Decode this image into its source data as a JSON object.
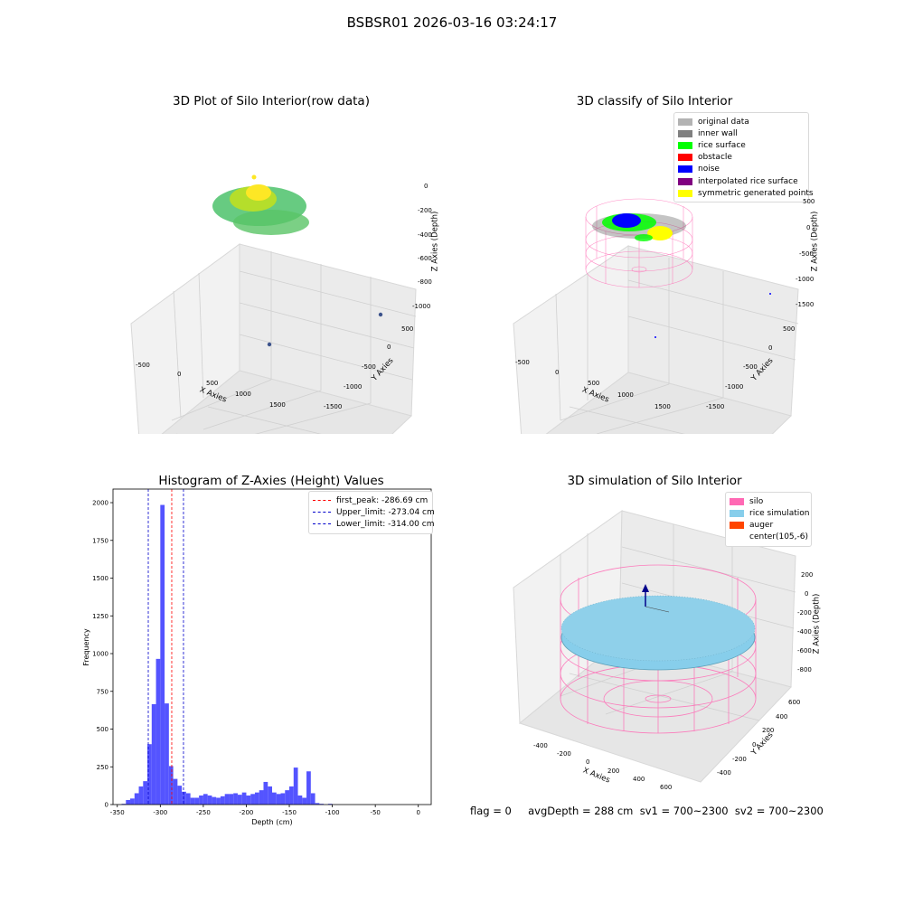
{
  "suptitle": "BSBSR01 2026-03-16 03:24:17",
  "footer": "flag = 0     avgDepth = 288 cm  sv1 = 700~2300  sv2 = 700~2300",
  "panels": {
    "raw": {
      "title": "3D Plot of Silo Interior(row data)",
      "xlabel": "X Axies",
      "ylabel": "Y Axies",
      "zlabel": "Z Axies (Depth)",
      "xticks": [
        "-500",
        "0",
        "500",
        "1000",
        "1500"
      ],
      "yticks": [
        "500",
        "0",
        "-500",
        "-1000",
        "-1500"
      ],
      "zticks": [
        "0",
        "-200",
        "-400",
        "-600",
        "-800",
        "-1000"
      ]
    },
    "classify": {
      "title": "3D classify of Silo Interior",
      "xlabel": "X Axies",
      "ylabel": "Y Axies",
      "zlabel": "Z Axies (Depth)",
      "xticks": [
        "-500",
        "0",
        "500",
        "1000",
        "1500"
      ],
      "yticks": [
        "500",
        "0",
        "-500",
        "-1000",
        "-1500"
      ],
      "zticks": [
        "500",
        "0",
        "-500",
        "-1000",
        "-1500"
      ],
      "legend": [
        {
          "label": "original data",
          "color": "#b3b3b3"
        },
        {
          "label": "inner wall",
          "color": "#808080"
        },
        {
          "label": "rice surface",
          "color": "#00ff00"
        },
        {
          "label": "obstacle",
          "color": "#ff0000"
        },
        {
          "label": "noise",
          "color": "#0000ff"
        },
        {
          "label": "interpolated rice surface",
          "color": "#800080"
        },
        {
          "label": "symmetric generated points",
          "color": "#ffff00"
        }
      ]
    },
    "simulation": {
      "title": "3D simulation of Silo Interior",
      "xlabel": "X Axies",
      "ylabel": "Y Axies",
      "zlabel": "Z Axies (Depth)",
      "xticks": [
        "-400",
        "-200",
        "0",
        "200",
        "400",
        "600"
      ],
      "yticks": [
        "600",
        "400",
        "200",
        "0",
        "-200",
        "-400"
      ],
      "zticks": [
        "200",
        "0",
        "-200",
        "-400",
        "-600",
        "-800"
      ],
      "legend": [
        {
          "label": "silo",
          "color": "#ff69b4"
        },
        {
          "label": "rice simulation",
          "color": "#87ceeb"
        },
        {
          "label": "auger",
          "color": "#ff4500"
        },
        {
          "label": "center(105,-6)",
          "color": ""
        }
      ]
    }
  },
  "chart_data": {
    "type": "bar",
    "title": "Histogram of Z-Axies (Height) Values",
    "xlabel": "Depth (cm)",
    "ylabel": "Frequency",
    "xlim": [
      -355,
      15
    ],
    "ylim": [
      0,
      2090
    ],
    "xticks": [
      -350,
      -300,
      -250,
      -200,
      -150,
      -100,
      -50,
      0
    ],
    "yticks": [
      0,
      250,
      500,
      750,
      1000,
      1250,
      1500,
      1750,
      2000
    ],
    "bar_color": "#4b4bff",
    "bins": [
      {
        "x": -345,
        "w": 5,
        "v": 5
      },
      {
        "x": -340,
        "w": 5,
        "v": 30
      },
      {
        "x": -335,
        "w": 5,
        "v": 40
      },
      {
        "x": -330,
        "w": 5,
        "v": 75
      },
      {
        "x": -325,
        "w": 5,
        "v": 120
      },
      {
        "x": -320,
        "w": 5,
        "v": 155
      },
      {
        "x": -315,
        "w": 5,
        "v": 400
      },
      {
        "x": -310,
        "w": 5,
        "v": 665
      },
      {
        "x": -305,
        "w": 5,
        "v": 965
      },
      {
        "x": -300,
        "w": 5,
        "v": 1985
      },
      {
        "x": -295,
        "w": 5,
        "v": 670
      },
      {
        "x": -290,
        "w": 5,
        "v": 255
      },
      {
        "x": -285,
        "w": 5,
        "v": 170
      },
      {
        "x": -280,
        "w": 5,
        "v": 125
      },
      {
        "x": -275,
        "w": 5,
        "v": 85
      },
      {
        "x": -270,
        "w": 5,
        "v": 75
      },
      {
        "x": -265,
        "w": 5,
        "v": 45
      },
      {
        "x": -260,
        "w": 5,
        "v": 45
      },
      {
        "x": -255,
        "w": 5,
        "v": 60
      },
      {
        "x": -250,
        "w": 5,
        "v": 70
      },
      {
        "x": -245,
        "w": 5,
        "v": 60
      },
      {
        "x": -240,
        "w": 5,
        "v": 50
      },
      {
        "x": -235,
        "w": 5,
        "v": 45
      },
      {
        "x": -230,
        "w": 5,
        "v": 55
      },
      {
        "x": -225,
        "w": 5,
        "v": 70
      },
      {
        "x": -220,
        "w": 5,
        "v": 70
      },
      {
        "x": -215,
        "w": 5,
        "v": 75
      },
      {
        "x": -210,
        "w": 5,
        "v": 65
      },
      {
        "x": -205,
        "w": 5,
        "v": 80
      },
      {
        "x": -200,
        "w": 5,
        "v": 60
      },
      {
        "x": -195,
        "w": 5,
        "v": 70
      },
      {
        "x": -190,
        "w": 5,
        "v": 80
      },
      {
        "x": -185,
        "w": 5,
        "v": 95
      },
      {
        "x": -180,
        "w": 5,
        "v": 150
      },
      {
        "x": -175,
        "w": 5,
        "v": 120
      },
      {
        "x": -170,
        "w": 5,
        "v": 80
      },
      {
        "x": -165,
        "w": 5,
        "v": 70
      },
      {
        "x": -160,
        "w": 5,
        "v": 75
      },
      {
        "x": -155,
        "w": 5,
        "v": 95
      },
      {
        "x": -150,
        "w": 5,
        "v": 120
      },
      {
        "x": -145,
        "w": 5,
        "v": 245
      },
      {
        "x": -140,
        "w": 5,
        "v": 60
      },
      {
        "x": -135,
        "w": 5,
        "v": 45
      },
      {
        "x": -130,
        "w": 5,
        "v": 220
      },
      {
        "x": -125,
        "w": 5,
        "v": 75
      },
      {
        "x": -120,
        "w": 5,
        "v": 10
      },
      {
        "x": -115,
        "w": 5,
        "v": 5
      },
      {
        "x": -105,
        "w": 5,
        "v": 5
      }
    ],
    "vlines": [
      {
        "label": "first_peak: -286.69 cm",
        "x": -286.69,
        "color": "#ff0000"
      },
      {
        "label": "Upper_limit: -273.04 cm",
        "x": -273.04,
        "color": "#0000cc"
      },
      {
        "label": "Lower_limit: -314.00 cm",
        "x": -314.0,
        "color": "#0000cc"
      }
    ]
  }
}
